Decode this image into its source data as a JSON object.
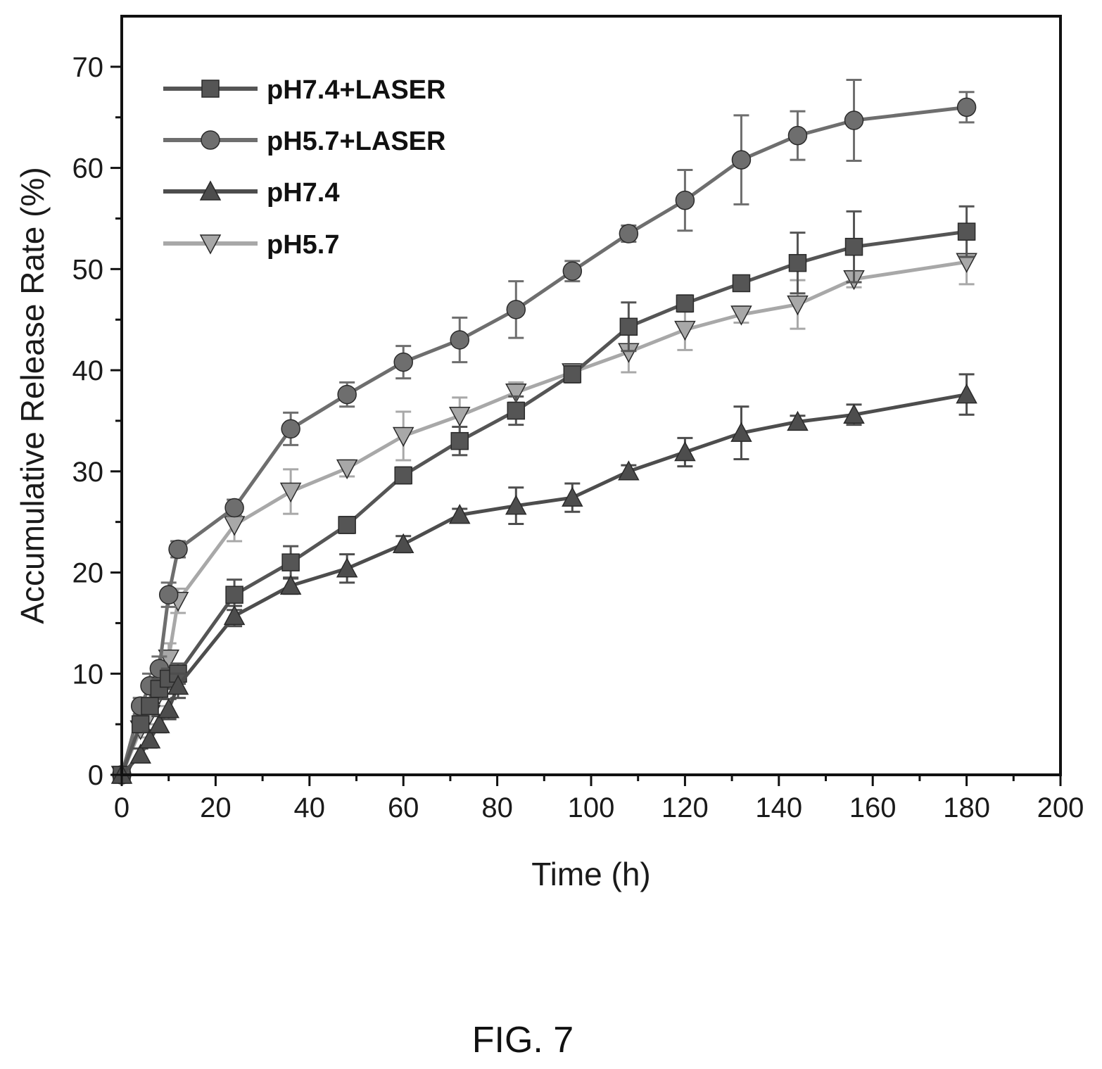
{
  "figure_caption": "FIG. 7",
  "chart_data": {
    "type": "line",
    "title": "",
    "xlabel": "Time (h)",
    "ylabel": "Accumulative Release Rate (%)",
    "xlim": [
      0,
      200
    ],
    "ylim": [
      0,
      75
    ],
    "xticks": [
      0,
      20,
      40,
      60,
      80,
      100,
      120,
      140,
      160,
      180,
      200
    ],
    "yticks": [
      0,
      10,
      20,
      30,
      40,
      50,
      60,
      70
    ],
    "grid": false,
    "legend_position": "top-left",
    "x": [
      0,
      4,
      6,
      8,
      10,
      12,
      24,
      36,
      48,
      60,
      72,
      84,
      96,
      108,
      120,
      132,
      144,
      156,
      180
    ],
    "series": [
      {
        "name": "pH7.4+LASER",
        "marker": "square",
        "color": "#555555",
        "values": [
          0,
          5.0,
          6.8,
          8.5,
          9.5,
          10.0,
          17.8,
          21.0,
          24.7,
          29.6,
          33.0,
          36.0,
          39.6,
          44.3,
          46.6,
          48.6,
          50.6,
          52.2,
          53.7
        ],
        "errors": [
          0,
          0.8,
          0.8,
          1.0,
          1.0,
          1.0,
          1.5,
          1.6,
          0.8,
          0.8,
          1.4,
          1.4,
          0.8,
          2.4,
          0.8,
          0.6,
          3.0,
          3.5,
          2.5
        ]
      },
      {
        "name": "pH5.7+LASER",
        "marker": "circle",
        "color": "#6e6e6e",
        "values": [
          0,
          6.8,
          8.8,
          10.5,
          17.8,
          22.3,
          26.4,
          34.2,
          37.6,
          40.8,
          43.0,
          46.0,
          49.8,
          53.5,
          56.8,
          60.8,
          63.2,
          64.7,
          66.0
        ],
        "errors": [
          0,
          0.8,
          1.2,
          1.2,
          1.2,
          0.8,
          0.8,
          1.6,
          1.2,
          1.6,
          2.2,
          2.8,
          1.0,
          0.8,
          3.0,
          4.4,
          2.4,
          4.0,
          1.5
        ]
      },
      {
        "name": "pH7.4",
        "marker": "triangle-up",
        "color": "#4d4d4d",
        "values": [
          0,
          2.0,
          3.5,
          5.0,
          6.5,
          8.8,
          15.7,
          18.7,
          20.4,
          22.8,
          25.7,
          26.6,
          27.4,
          30.0,
          31.9,
          33.8,
          34.9,
          35.6,
          37.6
        ],
        "errors": [
          0,
          0.6,
          0.8,
          0.8,
          1.0,
          1.2,
          1.0,
          0.8,
          1.4,
          0.8,
          0.6,
          1.8,
          1.4,
          0.6,
          1.4,
          2.6,
          0.6,
          1.0,
          2.0
        ]
      },
      {
        "name": "pH5.7",
        "marker": "triangle-down",
        "color": "#a8a8a8",
        "values": [
          0,
          4.5,
          6.0,
          8.0,
          11.5,
          17.2,
          24.7,
          28.0,
          30.3,
          33.5,
          35.5,
          37.8,
          39.8,
          41.8,
          44.0,
          45.5,
          46.5,
          49.0,
          50.7
        ],
        "errors": [
          0,
          0.8,
          1.0,
          1.2,
          1.5,
          1.2,
          1.6,
          2.2,
          0.8,
          2.4,
          1.8,
          1.0,
          0.8,
          2.0,
          2.0,
          0.8,
          2.4,
          0.8,
          2.2
        ]
      }
    ]
  }
}
